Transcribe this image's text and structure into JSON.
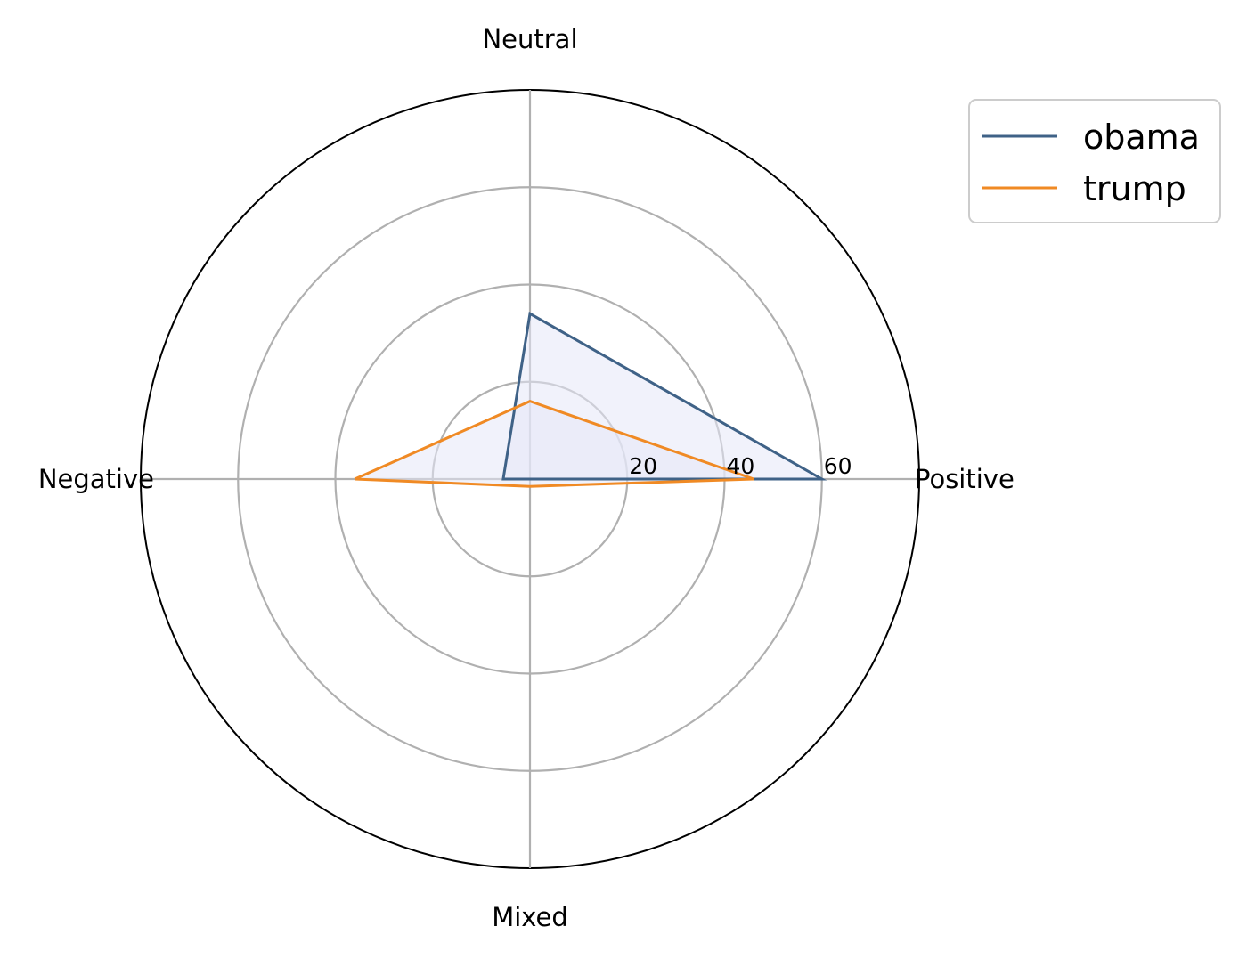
{
  "chart_data": {
    "type": "radar",
    "title": "",
    "categories": [
      "Positive",
      "Neutral",
      "Negative",
      "Mixed"
    ],
    "r_ticks": [
      20,
      40,
      60
    ],
    "r_gridlines": [
      20,
      40,
      60,
      80
    ],
    "r_max": 80,
    "grid": true,
    "legend_position": "top-right",
    "series": [
      {
        "name": "obama",
        "values": [
          60,
          34,
          5.5,
          0
        ],
        "color": "#3f6287"
      },
      {
        "name": "trump",
        "values": [
          46,
          16,
          36,
          1.5
        ],
        "color": "#f08a24"
      }
    ],
    "fill_color": "#e5e7f8"
  }
}
